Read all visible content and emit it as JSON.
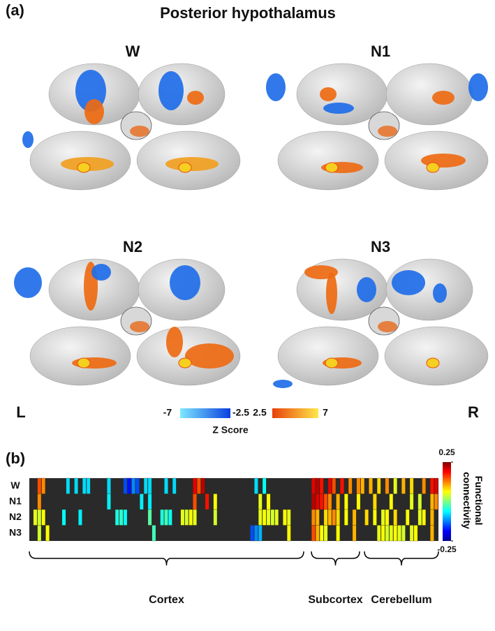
{
  "panel_a": {
    "label": "(a)",
    "title": "Posterior hypothalamus",
    "conditions": [
      "W",
      "N1",
      "N2",
      "N3"
    ],
    "left": "L",
    "right": "R",
    "zscore": {
      "ticks": [
        -7,
        -2.5,
        2.5,
        7
      ],
      "title": "Z Score"
    }
  },
  "chart_data": {
    "type": "heatmap",
    "label": "(b)",
    "rows": [
      "W",
      "N1",
      "N2",
      "N3"
    ],
    "values": [
      [
        null,
        null,
        0.15,
        0.12,
        null,
        null,
        null,
        null,
        null,
        -0.08,
        null,
        -0.08,
        null,
        -0.08,
        -0.08,
        null,
        null,
        null,
        null,
        -0.08,
        null,
        null,
        null,
        -0.15,
        -0.18,
        -0.12,
        -0.15,
        null,
        -0.08,
        -0.08,
        null,
        null,
        null,
        -0.08,
        null,
        -0.08,
        null,
        null,
        null,
        null,
        0.2,
        0.15,
        0.22,
        null,
        null,
        null,
        null,
        null,
        null,
        null,
        null,
        null,
        null,
        null,
        null,
        -0.08,
        null,
        -0.06,
        null,
        null,
        null,
        null,
        null,
        null,
        null,
        null,
        null,
        null,
        null,
        0.2,
        0.22,
        0.18,
        null,
        0.2,
        0.15,
        null,
        0.18,
        null,
        0.12,
        null,
        0.12,
        0.1,
        null,
        0.1,
        null,
        0.08,
        null,
        0.12,
        null,
        0.05,
        null,
        0.1,
        null,
        0.08,
        null,
        null,
        0.12,
        null,
        0.18,
        0.2
      ],
      [
        null,
        null,
        0.12,
        null,
        null,
        null,
        null,
        null,
        null,
        null,
        null,
        null,
        null,
        null,
        null,
        null,
        null,
        null,
        null,
        -0.07,
        null,
        null,
        null,
        null,
        null,
        null,
        null,
        -0.07,
        null,
        -0.07,
        null,
        null,
        null,
        null,
        null,
        null,
        null,
        null,
        null,
        null,
        0.15,
        null,
        null,
        0.18,
        null,
        0.06,
        null,
        null,
        null,
        null,
        null,
        null,
        null,
        null,
        null,
        null,
        0.05,
        null,
        0.06,
        null,
        null,
        null,
        null,
        null,
        null,
        null,
        null,
        null,
        null,
        0.22,
        0.2,
        0.18,
        0.15,
        0.12,
        null,
        0.1,
        null,
        0.06,
        null,
        null,
        0.06,
        null,
        null,
        null,
        0.08,
        null,
        null,
        null,
        0.06,
        null,
        null,
        null,
        null,
        0.05,
        null,
        0.04,
        null,
        null,
        0.1,
        0.12
      ],
      [
        null,
        0.05,
        0.04,
        0.06,
        null,
        null,
        null,
        null,
        -0.06,
        null,
        null,
        null,
        -0.07,
        null,
        null,
        null,
        null,
        null,
        null,
        null,
        null,
        -0.05,
        -0.04,
        -0.06,
        null,
        null,
        null,
        null,
        null,
        -0.02,
        null,
        null,
        -0.05,
        -0.03,
        -0.06,
        null,
        null,
        0.05,
        0.04,
        0.06,
        0.05,
        null,
        null,
        null,
        null,
        0.04,
        null,
        null,
        null,
        null,
        null,
        null,
        null,
        null,
        null,
        null,
        0.05,
        0.06,
        0.05,
        0.04,
        0.05,
        null,
        0.06,
        0.05,
        null,
        null,
        null,
        null,
        null,
        0.12,
        0.1,
        null,
        0.08,
        0.1,
        0.12,
        0.08,
        null,
        0.06,
        null,
        0.1,
        null,
        null,
        0.08,
        null,
        0.06,
        null,
        0.05,
        0.06,
        null,
        0.08,
        null,
        null,
        0.06,
        null,
        null,
        0.05,
        0.06,
        null,
        0.1,
        null
      ],
      [
        null,
        null,
        0.04,
        null,
        0.06,
        null,
        null,
        null,
        null,
        null,
        null,
        null,
        null,
        null,
        null,
        null,
        null,
        null,
        null,
        null,
        null,
        null,
        null,
        null,
        null,
        null,
        null,
        null,
        null,
        null,
        -0.03,
        null,
        null,
        null,
        null,
        null,
        null,
        null,
        null,
        null,
        null,
        null,
        null,
        null,
        null,
        null,
        null,
        null,
        null,
        null,
        null,
        null,
        null,
        null,
        -0.15,
        -0.12,
        -0.1,
        null,
        null,
        null,
        null,
        null,
        null,
        0.06,
        null,
        null,
        null,
        null,
        null,
        0.15,
        0.1,
        0.06,
        0.05,
        null,
        null,
        0.06,
        null,
        null,
        null,
        0.1,
        null,
        null,
        null,
        null,
        null,
        0.05,
        0.06,
        0.04,
        0.05,
        0.06,
        0.05,
        0.04,
        null,
        0.05,
        0.06,
        null,
        null,
        null,
        0.1,
        null
      ]
    ],
    "clim": [
      -0.25,
      0.25
    ],
    "colorbar_ticks": [
      0.25,
      -0.25
    ],
    "colorbar_label": "Functional connectivity",
    "groups": [
      "Cortex",
      "Subcortex",
      "Cerebellum"
    ]
  }
}
